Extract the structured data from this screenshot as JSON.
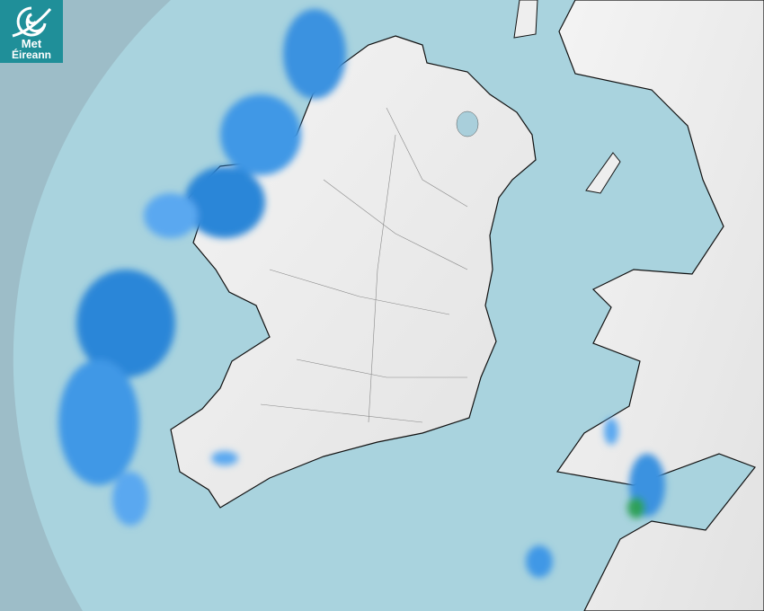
{
  "logo": {
    "line1": "Met",
    "line2": "Éireann",
    "icon": "swirl-logo-icon",
    "color": "#1f8f99"
  },
  "map": {
    "type": "rainfall-radar",
    "colors": {
      "outside_coverage": "#9dbdc8",
      "radar_coverage_sea": "#a9d3de",
      "land": "#f2f2f2",
      "rain_light": "#5aa8f0",
      "rain_moderate": "#2a86d8",
      "rain_heavy": "#2fa05a"
    }
  }
}
